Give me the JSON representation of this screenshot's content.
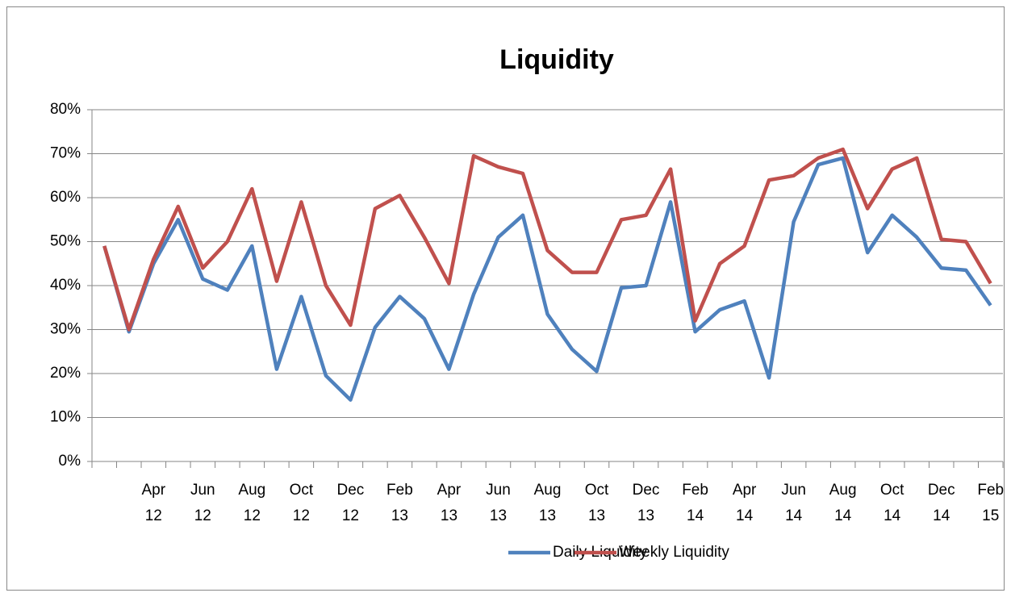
{
  "chart_data": {
    "type": "line",
    "title": "Liquidity",
    "categories": [
      null,
      null,
      "Apr 12",
      null,
      "Jun 12",
      null,
      "Aug 12",
      null,
      "Oct 12",
      null,
      "Dec 12",
      null,
      "Feb 13",
      null,
      "Apr 13",
      null,
      "Jun 13",
      null,
      "Aug 13",
      null,
      "Oct 13",
      null,
      "Dec 13",
      null,
      "Feb 14",
      null,
      "Apr 14",
      null,
      "Jun 14",
      null,
      "Aug 14",
      null,
      "Oct 14",
      null,
      "Dec 14",
      null,
      "Feb 15"
    ],
    "series": [
      {
        "name": "Daily Liquidity",
        "color": "#4f81bd",
        "values": [
          49,
          29.5,
          45,
          55,
          41.5,
          39,
          49,
          21,
          37.5,
          19.5,
          14,
          30.5,
          37.5,
          32.5,
          21,
          38,
          51,
          56,
          33.5,
          25.5,
          20.5,
          39.5,
          40,
          59,
          29.5,
          34.5,
          36.5,
          19,
          54.5,
          67.5,
          69,
          47.5,
          56,
          51,
          44,
          43.5,
          35.5
        ]
      },
      {
        "name": "Weekly Liquidity",
        "color": "#c0504d",
        "values": [
          49,
          30,
          46,
          58,
          44,
          50,
          62,
          41,
          59,
          40,
          31,
          57.5,
          60.5,
          51,
          40.5,
          69.5,
          67,
          65.5,
          48,
          43,
          43,
          55,
          56,
          66.5,
          32,
          45,
          49,
          64,
          65,
          69,
          71,
          57.5,
          66.5,
          69,
          50.5,
          50,
          40.5
        ]
      }
    ],
    "ylim": [
      0,
      80
    ],
    "yticks": [
      {
        "value": 0,
        "label": "0%"
      },
      {
        "value": 10,
        "label": "10%"
      },
      {
        "value": 20,
        "label": "20%"
      },
      {
        "value": 30,
        "label": "30%"
      },
      {
        "value": 40,
        "label": "40%"
      },
      {
        "value": 50,
        "label": "50%"
      },
      {
        "value": 60,
        "label": "60%"
      },
      {
        "value": 70,
        "label": "70%"
      },
      {
        "value": 80,
        "label": "80%"
      }
    ],
    "grid": true,
    "legend": "bottom"
  }
}
